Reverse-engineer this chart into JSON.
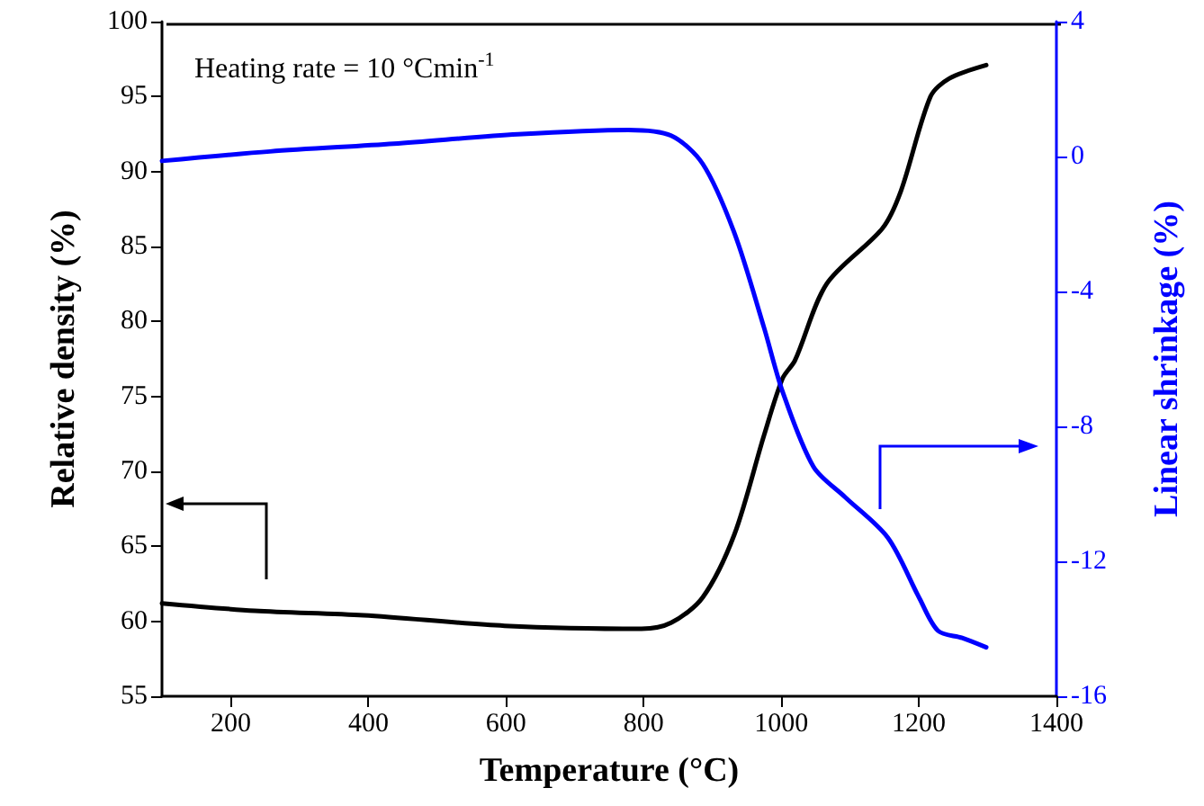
{
  "chart_data": {
    "type": "line",
    "xlabel": "Temperature (°C)",
    "ylabel": "Relative density (%)",
    "y2label": "Linear shrinkage (%)",
    "annotations": [
      "Heating rate = 10 °Cmin$^{-1}$"
    ],
    "xlim": [
      100,
      1400
    ],
    "xticks": [
      200,
      400,
      600,
      800,
      1000,
      1200,
      1400
    ],
    "ylim": [
      55,
      100
    ],
    "yticks": [
      55,
      60,
      65,
      70,
      75,
      80,
      85,
      90,
      95,
      100
    ],
    "y2lim": [
      -16,
      4
    ],
    "y2ticks": [
      -16,
      -12,
      -8,
      -4,
      0,
      4
    ],
    "marker": "none",
    "line_style": "solid",
    "grid": false,
    "series": [
      {
        "color": "#000000",
        "x": [
          100,
          235,
          393,
          598,
          797,
          840,
          886,
          932,
          975,
          1002,
          1020,
          1066,
          1147,
          1174,
          1217,
          1244,
          1298
        ],
        "values": [
          61.2,
          60.7,
          60.4,
          59.7,
          59.5,
          59.9,
          61.6,
          65.8,
          72.4,
          76.2,
          77.4,
          82.5,
          86.2,
          88.7,
          95,
          96.2,
          97.1
        ]
      },
      {
        "color": "#0000ff",
        "axis": "y2",
        "x": [
          100,
          257,
          437,
          617,
          778,
          840,
          886,
          932,
          975,
          1002,
          1047,
          1093,
          1155,
          1201,
          1228,
          1263,
          1298
        ],
        "values": [
          -0.13,
          0.15,
          0.38,
          0.66,
          0.79,
          0.62,
          -0.22,
          -2.27,
          -5.07,
          -6.97,
          -9.2,
          -10.1,
          -11.3,
          -13.1,
          -14.06,
          -14.27,
          -14.55
        ]
      }
    ]
  }
}
